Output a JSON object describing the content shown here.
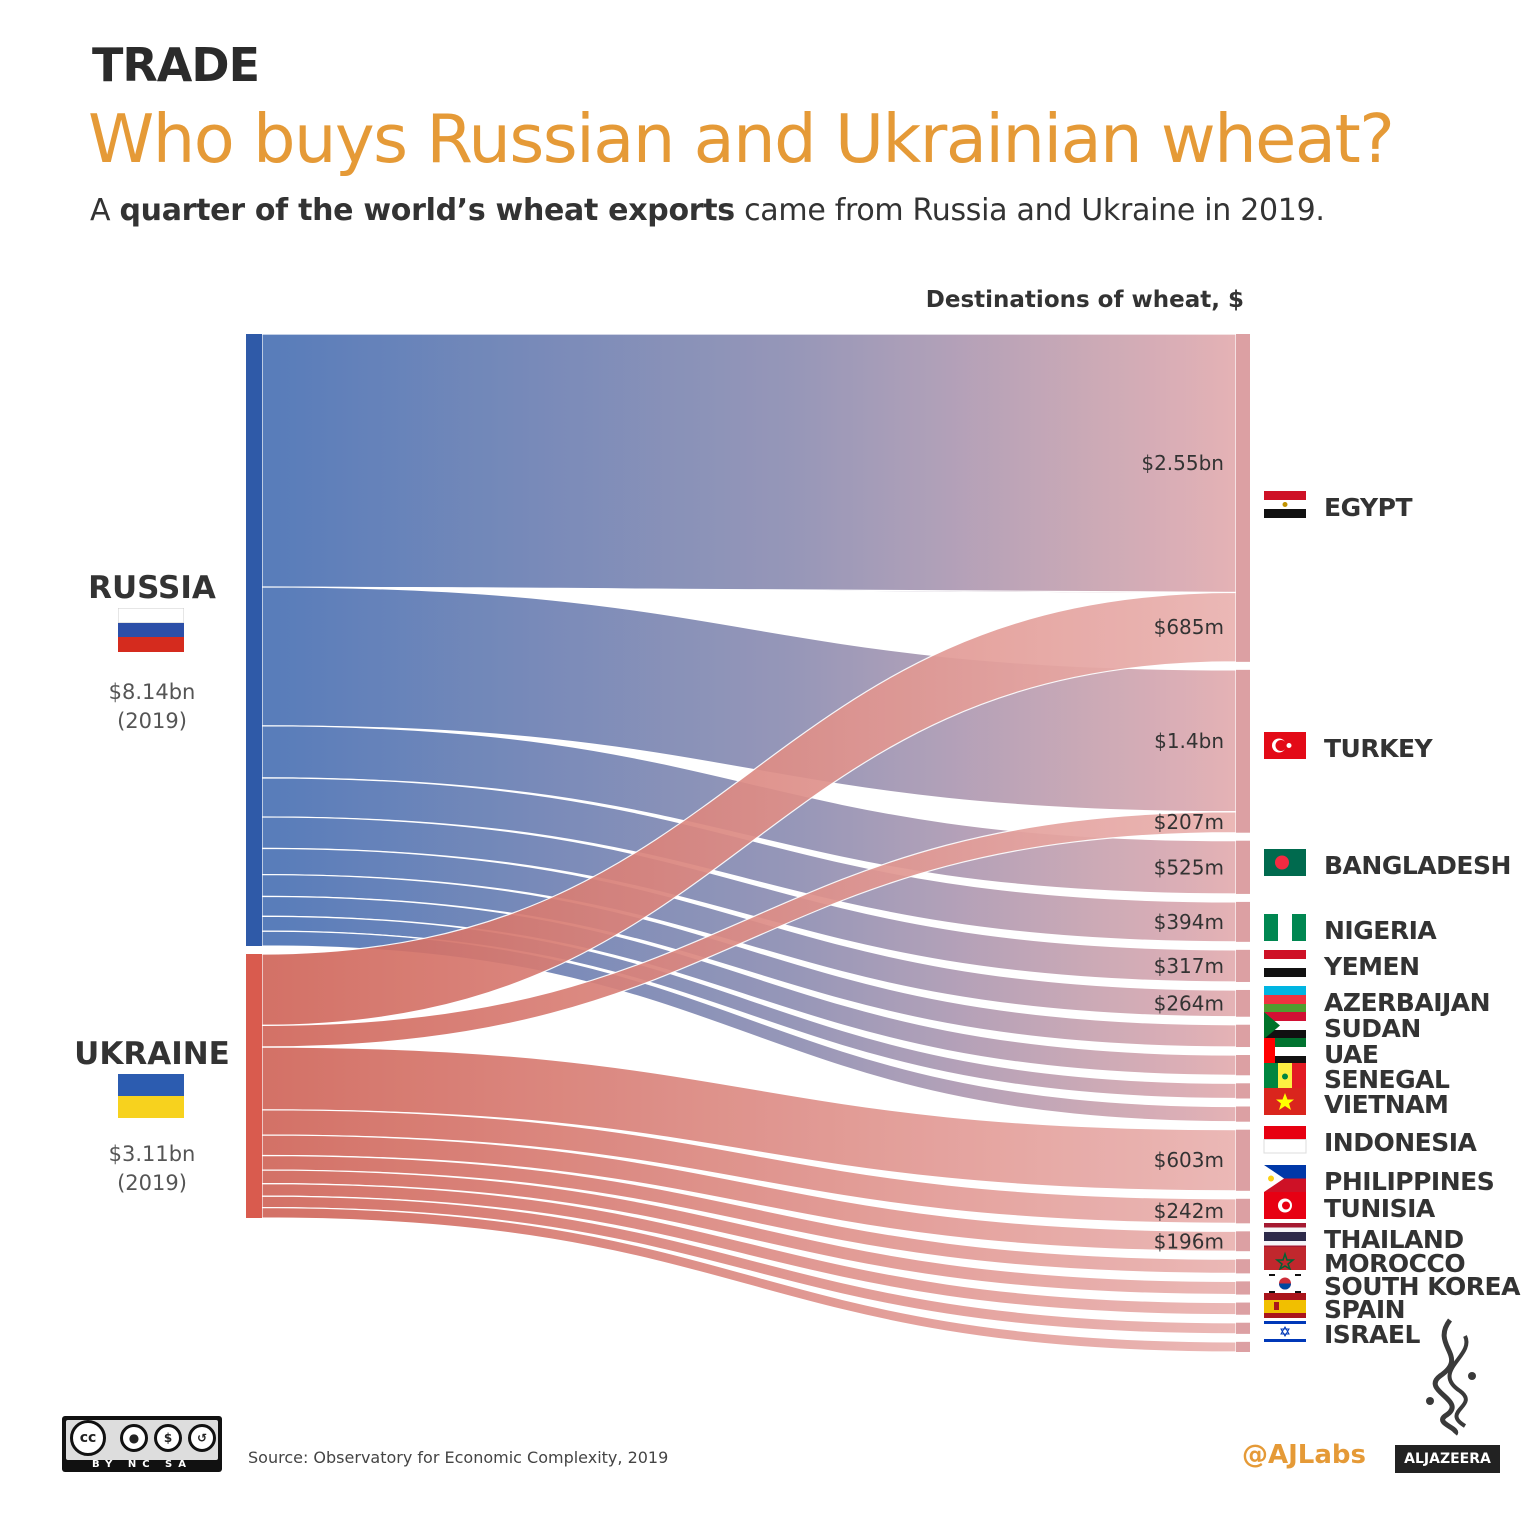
{
  "header": {
    "kicker": "TRADE",
    "title": "Who buys Russian and Ukrainian wheat?",
    "subtitle_prefix": "A ",
    "subtitle_bold": "quarter of the world’s wheat exports",
    "subtitle_rest": " came from Russia and Ukraine in 2019."
  },
  "chart_data": {
    "type": "sankey",
    "title": "Destinations of wheat, $",
    "sources": [
      {
        "name": "RUSSIA",
        "value_label": "$8.14bn",
        "year_label": "(2019)",
        "color": "#2f5aa8",
        "flag": "russia-flag"
      },
      {
        "name": "UKRAINE",
        "value_label": "$3.11bn",
        "year_label": "(2019)",
        "color": "#d95b4e",
        "flag": "ukraine-flag"
      }
    ],
    "destinations": [
      {
        "name": "EGYPT",
        "flag": "egypt-flag"
      },
      {
        "name": "TURKEY",
        "flag": "turkey-flag"
      },
      {
        "name": "BANGLADESH",
        "flag": "bangladesh-flag"
      },
      {
        "name": "NIGERIA",
        "flag": "nigeria-flag"
      },
      {
        "name": "YEMEN",
        "flag": "yemen-flag"
      },
      {
        "name": "AZERBAIJAN",
        "flag": "azerbaijan-flag"
      },
      {
        "name": "SUDAN",
        "flag": "sudan-flag"
      },
      {
        "name": "UAE",
        "flag": "uae-flag"
      },
      {
        "name": "SENEGAL",
        "flag": "senegal-flag"
      },
      {
        "name": "VIETNAM",
        "flag": "vietnam-flag"
      },
      {
        "name": "INDONESIA",
        "flag": "indonesia-flag"
      },
      {
        "name": "PHILIPPINES",
        "flag": "philippines-flag"
      },
      {
        "name": "TUNISIA",
        "flag": "tunisia-flag"
      },
      {
        "name": "THAILAND",
        "flag": "thailand-flag"
      },
      {
        "name": "MOROCCO",
        "flag": "morocco-flag"
      },
      {
        "name": "SOUTH KOREA",
        "flag": "south-korea-flag"
      },
      {
        "name": "SPAIN",
        "flag": "spain-flag"
      },
      {
        "name": "ISRAEL",
        "flag": "israel-flag"
      }
    ],
    "flows": [
      {
        "source": "RUSSIA",
        "target": "EGYPT",
        "value": 2550,
        "label": "$2.55bn"
      },
      {
        "source": "RUSSIA",
        "target": "TURKEY",
        "value": 1400,
        "label": "$1.4bn"
      },
      {
        "source": "RUSSIA",
        "target": "BANGLADESH",
        "value": 525,
        "label": "$525m"
      },
      {
        "source": "RUSSIA",
        "target": "NIGERIA",
        "value": 394,
        "label": "$394m"
      },
      {
        "source": "RUSSIA",
        "target": "YEMEN",
        "value": 317,
        "label": "$317m"
      },
      {
        "source": "RUSSIA",
        "target": "AZERBAIJAN",
        "value": 264,
        "label": "$264m"
      },
      {
        "source": "RUSSIA",
        "target": "SUDAN",
        "value": 220,
        "label": ""
      },
      {
        "source": "RUSSIA",
        "target": "UAE",
        "value": 200,
        "label": ""
      },
      {
        "source": "RUSSIA",
        "target": "SENEGAL",
        "value": 150,
        "label": ""
      },
      {
        "source": "RUSSIA",
        "target": "VIETNAM",
        "value": 150,
        "label": ""
      },
      {
        "source": "UKRAINE",
        "target": "EGYPT",
        "value": 685,
        "label": "$685m"
      },
      {
        "source": "UKRAINE",
        "target": "TURKEY",
        "value": 207,
        "label": "$207m"
      },
      {
        "source": "UKRAINE",
        "target": "INDONESIA",
        "value": 603,
        "label": "$603m"
      },
      {
        "source": "UKRAINE",
        "target": "PHILIPPINES",
        "value": 242,
        "label": "$242m"
      },
      {
        "source": "UKRAINE",
        "target": "TUNISIA",
        "value": 196,
        "label": "$196m"
      },
      {
        "source": "UKRAINE",
        "target": "THAILAND",
        "value": 140,
        "label": ""
      },
      {
        "source": "UKRAINE",
        "target": "MOROCCO",
        "value": 130,
        "label": ""
      },
      {
        "source": "UKRAINE",
        "target": "SOUTH KOREA",
        "value": 120,
        "label": ""
      },
      {
        "source": "UKRAINE",
        "target": "SPAIN",
        "value": 110,
        "label": ""
      },
      {
        "source": "UKRAINE",
        "target": "ISRAEL",
        "value": 100,
        "label": ""
      }
    ]
  },
  "footer": {
    "source": "Source: Observatory for Economic Complexity, 2019",
    "license": "BY NC SA",
    "license_badge": "cc",
    "handle": "@AJLabs",
    "brand": "ALJAZEERA"
  }
}
